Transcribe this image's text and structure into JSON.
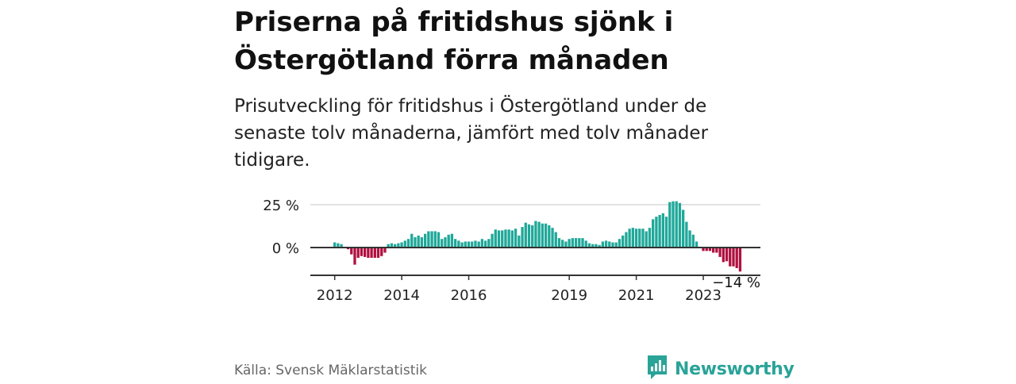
{
  "title": "Priserna på fritidshus sjönk i Östergötland förra månaden",
  "subtitle": "Prisutveckling för fritidshus i Östergötland under de senaste tolv månaderna, jämfört med tolv månader tidigare.",
  "source": "Källa: Svensk Mäklarstatistik",
  "brand": {
    "name": "Newsworthy",
    "icon": "newsworthy-logo-icon"
  },
  "colors": {
    "positive": "#1fa899",
    "negative": "#b0103f",
    "brand": "#2aa398"
  },
  "chart_data": {
    "type": "bar",
    "title": "",
    "xlabel": "",
    "ylabel": "",
    "ylim": [
      -17,
      27
    ],
    "yticks": [
      {
        "value": 25,
        "label": "25 %"
      },
      {
        "value": 0,
        "label": "0 %"
      }
    ],
    "xticks": [
      {
        "index": 0,
        "label": "2012"
      },
      {
        "index": 20,
        "label": "2014"
      },
      {
        "index": 40,
        "label": "2016"
      },
      {
        "index": 70,
        "label": "2019"
      },
      {
        "index": 90,
        "label": "2021"
      },
      {
        "index": 110,
        "label": "2023"
      }
    ],
    "end_label": "−14 %",
    "grid": true,
    "start_month": "2012-01",
    "values": [
      3,
      2.5,
      2,
      0,
      -1,
      -4,
      -10,
      -6,
      -5,
      -5.5,
      -6,
      -6,
      -6,
      -6,
      -5,
      -3,
      2,
      2.5,
      2,
      2.5,
      3,
      4,
      5,
      8,
      6,
      7,
      6,
      8,
      9.5,
      9.5,
      9.5,
      9,
      5,
      6,
      7.5,
      8,
      5,
      4,
      3,
      3.5,
      3.5,
      3.5,
      4,
      3.5,
      5,
      4,
      5,
      8,
      10.5,
      10,
      10,
      10.5,
      10.5,
      10,
      11,
      7,
      12,
      14.5,
      13.5,
      13,
      15.5,
      15,
      14,
      14,
      13,
      11.5,
      9,
      5.5,
      4.5,
      3.5,
      5,
      5.5,
      5.5,
      5.5,
      5.5,
      4,
      2.5,
      2,
      2,
      1.5,
      3.5,
      4,
      3.5,
      3,
      3,
      5,
      7,
      9,
      11,
      11.5,
      11,
      11,
      11,
      9.5,
      11.5,
      16.5,
      18,
      19,
      20,
      18,
      26.5,
      27,
      27,
      26,
      22,
      15,
      10,
      7.5,
      3.5,
      0.5,
      -2,
      -2,
      -2,
      -3,
      -3,
      -5.5,
      -8.5,
      -8,
      -11,
      -11,
      -12,
      -14
    ]
  }
}
